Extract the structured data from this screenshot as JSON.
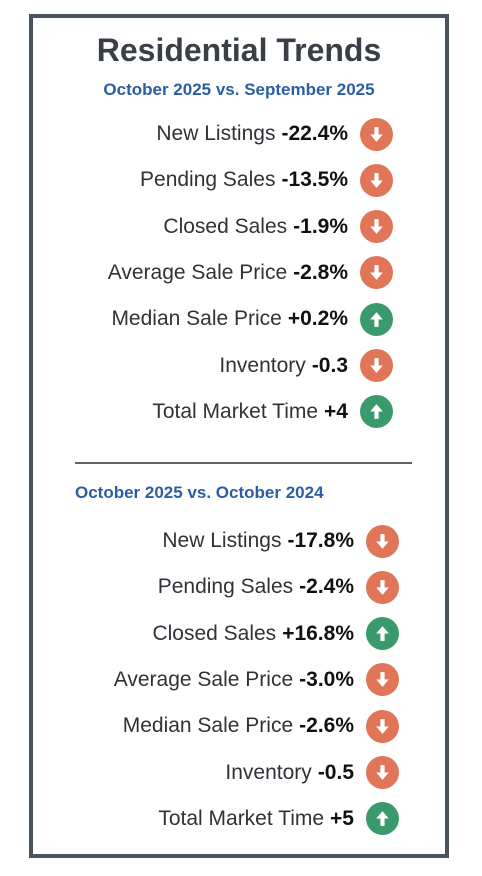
{
  "title": "Residential Trends",
  "section1": {
    "subtitle": "October 2025 vs. September 2025",
    "rows": [
      {
        "label": "New Listings",
        "value": "-22.4%",
        "direction": "down",
        "icon": "down-arrow-icon"
      },
      {
        "label": "Pending Sales",
        "value": "-13.5%",
        "direction": "down",
        "icon": "down-arrow-icon"
      },
      {
        "label": "Closed Sales",
        "value": "-1.9%",
        "direction": "down",
        "icon": "down-arrow-icon"
      },
      {
        "label": "Average Sale Price",
        "value": "-2.8%",
        "direction": "down",
        "icon": "down-arrow-icon"
      },
      {
        "label": "Median Sale Price",
        "value": "+0.2%",
        "direction": "up",
        "icon": "up-arrow-icon"
      },
      {
        "label": "Inventory",
        "value": "-0.3",
        "direction": "down",
        "icon": "down-arrow-icon"
      },
      {
        "label": "Total Market Time",
        "value": "+4",
        "direction": "up",
        "icon": "up-arrow-icon"
      }
    ]
  },
  "section2": {
    "subtitle": "October 2025 vs. October 2024",
    "rows": [
      {
        "label": "New Listings",
        "value": "-17.8%",
        "direction": "down",
        "icon": "down-arrow-icon"
      },
      {
        "label": "Pending Sales",
        "value": "-2.4%",
        "direction": "down",
        "icon": "down-arrow-icon"
      },
      {
        "label": "Closed Sales",
        "value": "+16.8%",
        "direction": "up",
        "icon": "up-arrow-icon"
      },
      {
        "label": "Average Sale Price",
        "value": "-3.0%",
        "direction": "down",
        "icon": "down-arrow-icon"
      },
      {
        "label": "Median Sale Price",
        "value": "-2.6%",
        "direction": "down",
        "icon": "down-arrow-icon"
      },
      {
        "label": "Inventory",
        "value": "-0.5",
        "direction": "down",
        "icon": "down-arrow-icon"
      },
      {
        "label": "Total Market Time",
        "value": "+5",
        "direction": "up",
        "icon": "up-arrow-icon"
      }
    ]
  },
  "colors": {
    "down": "#e07558",
    "up": "#3a9a6b",
    "subtitle": "#2b5ea3",
    "border": "#4a5461"
  }
}
